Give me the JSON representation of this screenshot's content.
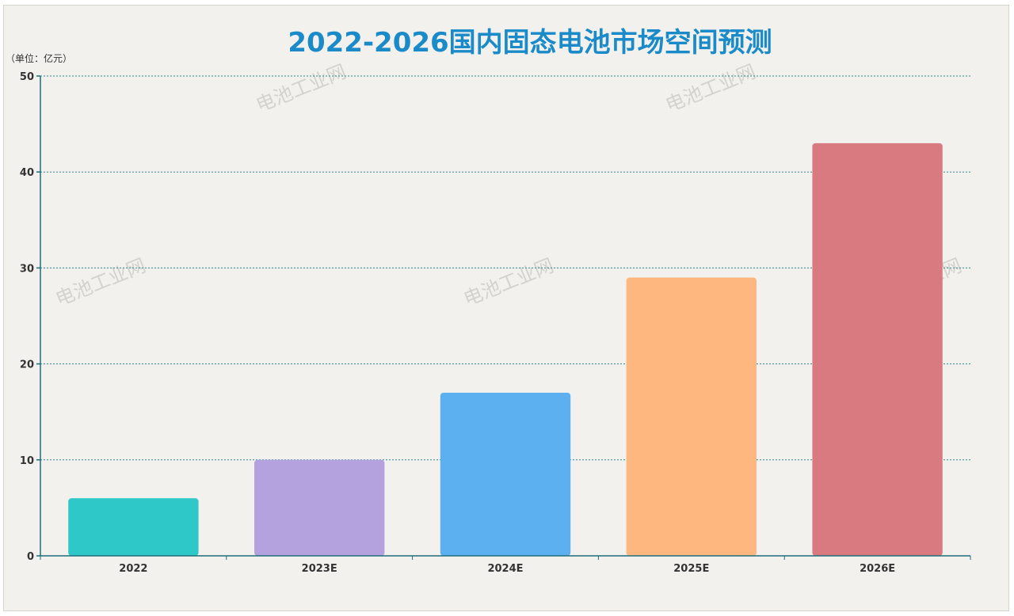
{
  "chart_data": {
    "type": "bar",
    "title": "2022-2026国内固态电池市场空间预测",
    "unit_label": "（单位：亿元）",
    "categories": [
      "2022",
      "2023E",
      "2024E",
      "2025E",
      "2026E"
    ],
    "values": [
      6,
      10,
      17,
      29,
      43
    ],
    "bar_colors": [
      "#2ec8c9",
      "#b4a2de",
      "#5db0f0",
      "#feb87f",
      "#d87a80"
    ],
    "ylim": [
      0,
      50
    ],
    "yticks": [
      0,
      10,
      20,
      30,
      40,
      50
    ],
    "grid": true,
    "legend": "none"
  },
  "watermark": {
    "text": "电池工业网"
  },
  "colors": {
    "title": "#1a8bc8",
    "axis": "#1e6e78",
    "grid": "#2a8a8a",
    "background": "#f2f1ee"
  }
}
